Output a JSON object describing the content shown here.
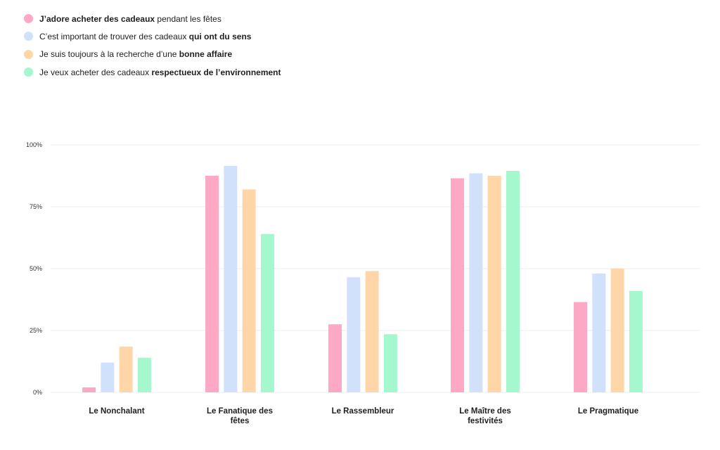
{
  "chart_data": {
    "type": "bar",
    "series": [
      {
        "name_parts": [
          {
            "text": "J’adore acheter des cadeaux",
            "bold": true
          },
          {
            "text": " pendant les fêtes",
            "bold": false
          }
        ],
        "color": "#fda8c5",
        "values": [
          2,
          87.5,
          27.5,
          86.5,
          36.5
        ]
      },
      {
        "name_parts": [
          {
            "text": "C’est important de trouver des cadeaux ",
            "bold": false
          },
          {
            "text": "qui ont du sens",
            "bold": true
          }
        ],
        "color": "#d2e1fb",
        "values": [
          12,
          91.5,
          46.5,
          88.5,
          48
        ]
      },
      {
        "name_parts": [
          {
            "text": "Je suis toujours à la recherche d’une ",
            "bold": false
          },
          {
            "text": "bonne affaire",
            "bold": true
          }
        ],
        "color": "#fed6a8",
        "values": [
          18.5,
          82,
          49,
          87.5,
          50
        ]
      },
      {
        "name_parts": [
          {
            "text": "Je veux acheter des cadeaux ",
            "bold": false
          },
          {
            "text": "respectueux de l’environnement",
            "bold": true
          }
        ],
        "color": "#a5f8cd",
        "values": [
          14,
          64,
          23.5,
          89.5,
          41
        ]
      }
    ],
    "categories": [
      [
        "Le Nonchalant"
      ],
      [
        "Le Fanatique des",
        "fêtes"
      ],
      [
        "Le Rassembleur"
      ],
      [
        "Le Maître des",
        "festivités"
      ],
      [
        "Le Pragmatique"
      ]
    ],
    "yticks": [
      {
        "value": 0,
        "label": "0%"
      },
      {
        "value": 25,
        "label": "25%"
      },
      {
        "value": 50,
        "label": "50%"
      },
      {
        "value": 75,
        "label": "75%"
      },
      {
        "value": 100,
        "label": "100%"
      }
    ],
    "ylim": [
      0,
      100
    ],
    "grid": true,
    "legend_position": "top-left"
  }
}
